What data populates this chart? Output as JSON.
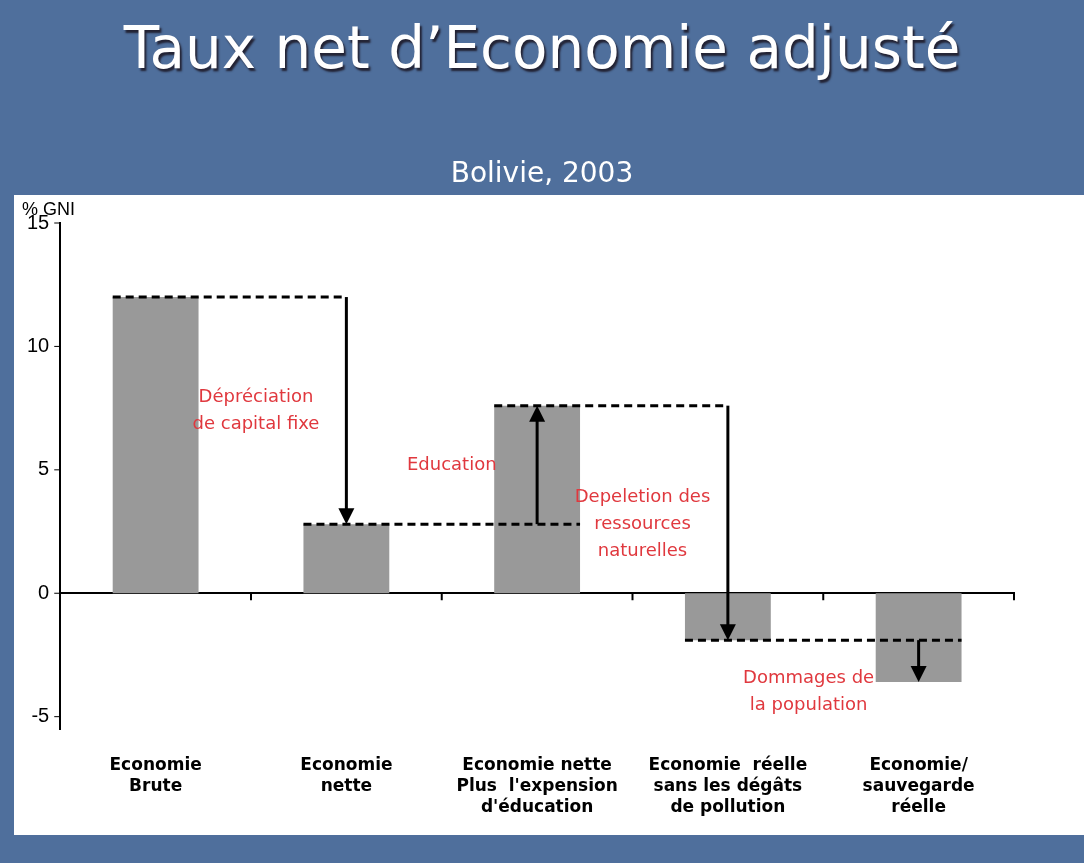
{
  "chart_data": {
    "type": "bar",
    "title": "Taux net d’Economie adjusté",
    "subtitle": "Bolivie, 2003",
    "ylabel": "% GNI",
    "categories": [
      "Economie\nBrute",
      "Economie\nnette",
      "Economie nette\nPlus  l'expension\nd'éducation",
      "Economie  réelle\nsans les dégâts\nde pollution",
      "Economie/\nsauvegarde\nréelle"
    ],
    "values": [
      12,
      2.8,
      7.6,
      -1.9,
      -3.6
    ],
    "color": "#999999",
    "ref_lines": [
      {
        "axis": "y",
        "value": 12,
        "line_style": "dashed"
      },
      {
        "axis": "y",
        "value": 2.8,
        "line_style": "dashed"
      },
      {
        "axis": "y",
        "value": 7.6,
        "line_style": "dashed"
      },
      {
        "axis": "y",
        "value": -1.9,
        "line_style": "dashed"
      }
    ],
    "ylim": [
      -5.5,
      15
    ],
    "yticks": [
      -5,
      0,
      5,
      10,
      15
    ],
    "legend": false,
    "annotations": [
      "Dépréciation\nde capital fixe",
      "Education",
      "Depeletion des\nressources\nnaturelles",
      "Dommages de\nla population"
    ]
  }
}
